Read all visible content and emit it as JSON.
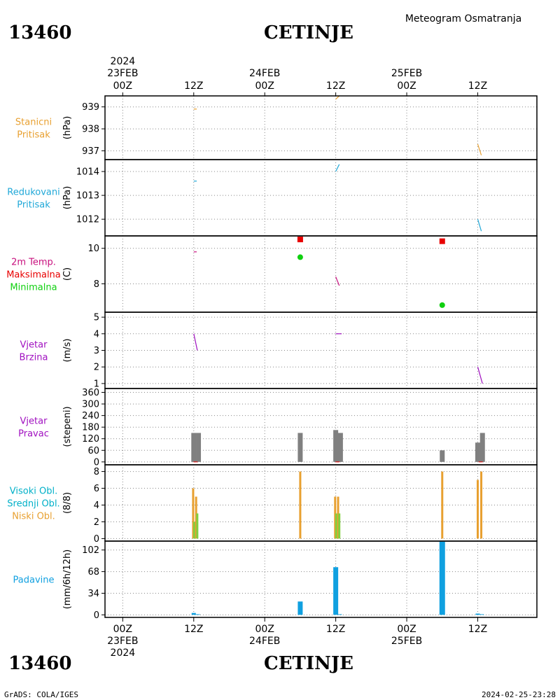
{
  "header": {
    "station_id": "13460",
    "station_name": "CETINJE",
    "product": "Meteogram Osmatranja"
  },
  "footer": {
    "credit": "GrADS: COLA/IGES",
    "timestamp": "2024-02-25-23:28"
  },
  "time_axis": {
    "year": "2024",
    "ticks": [
      {
        "h": 0,
        "time": "00Z",
        "date": "23FEB"
      },
      {
        "h": 12,
        "time": "12Z",
        "date": ""
      },
      {
        "h": 24,
        "time": "00Z",
        "date": "24FEB"
      },
      {
        "h": 36,
        "time": "12Z",
        "date": ""
      },
      {
        "h": 48,
        "time": "00Z",
        "date": "25FEB"
      },
      {
        "h": 60,
        "time": "12Z",
        "date": ""
      }
    ]
  },
  "colors": {
    "orange": "#e8a030",
    "blue": "#20a8d8",
    "magenta": "#c8107e",
    "red": "#e80000",
    "green": "#10d010",
    "purple": "#a010c0",
    "gray": "#808080",
    "cyan": "#00b0c8",
    "lightgreen": "#80d040",
    "precip": "#10a0e0"
  },
  "chart_data": [
    {
      "id": "station_pressure",
      "type": "line",
      "labels": [
        {
          "text": "Stanicni",
          "color": "#e8a030"
        },
        {
          "text": "Pritisak",
          "color": "#e8a030"
        }
      ],
      "unit": "(hPa)",
      "ylim": [
        936.6,
        939.5
      ],
      "yticks": [
        937,
        938,
        939
      ],
      "segments": [
        {
          "color": "#e8a030",
          "points": [
            [
              12,
              938.9
            ],
            [
              12.5,
              938.9
            ]
          ]
        },
        {
          "color": "#e8a030",
          "points": [
            [
              36,
              939.35
            ],
            [
              36.6,
              939.5
            ]
          ]
        },
        {
          "color": "#e8a030",
          "points": [
            [
              60,
              937.3
            ],
            [
              60.6,
              936.8
            ]
          ]
        }
      ]
    },
    {
      "id": "reduced_pressure",
      "type": "line",
      "labels": [
        {
          "text": "Redukovani",
          "color": "#20a8d8"
        },
        {
          "text": "Pritisak",
          "color": "#20a8d8"
        }
      ],
      "unit": "(hPa)",
      "ylim": [
        1011.3,
        1014.5
      ],
      "yticks": [
        1012,
        1013,
        1014
      ],
      "segments": [
        {
          "color": "#20a8d8",
          "points": [
            [
              12,
              1013.6
            ],
            [
              12.5,
              1013.6
            ]
          ]
        },
        {
          "color": "#20a8d8",
          "points": [
            [
              36,
              1014
            ],
            [
              36.6,
              1014.3
            ]
          ]
        },
        {
          "color": "#20a8d8",
          "points": [
            [
              60,
              1012
            ],
            [
              60.6,
              1011.5
            ]
          ]
        }
      ]
    },
    {
      "id": "temperature",
      "type": "line",
      "labels": [
        {
          "text": "2m Temp.",
          "color": "#c8107e"
        },
        {
          "text": "Maksimalna",
          "color": "#e80000"
        },
        {
          "text": "Minimalna",
          "color": "#10d010"
        }
      ],
      "unit": "(C)",
      "ylim": [
        6.4,
        10.7
      ],
      "yticks": [
        8,
        10
      ],
      "segments": [
        {
          "color": "#c8107e",
          "points": [
            [
              12,
              9.8
            ],
            [
              12.5,
              9.8
            ]
          ]
        },
        {
          "color": "#c8107e",
          "points": [
            [
              36,
              8.4
            ],
            [
              36.6,
              7.9
            ]
          ]
        }
      ],
      "max_points": [
        [
          30,
          10.5
        ],
        [
          54,
          10.4
        ]
      ],
      "min_points": [
        [
          30,
          9.5
        ],
        [
          54,
          6.8
        ]
      ]
    },
    {
      "id": "wind_speed",
      "type": "line",
      "labels": [
        {
          "text": "Vjetar",
          "color": "#a010c0"
        },
        {
          "text": "Brzina",
          "color": "#a010c0"
        }
      ],
      "unit": "(m/s)",
      "ylim": [
        0.7,
        5.3
      ],
      "yticks": [
        1,
        2,
        3,
        4,
        5
      ],
      "segments": [
        {
          "color": "#a010c0",
          "points": [
            [
              12,
              4
            ],
            [
              12.6,
              3
            ]
          ]
        },
        {
          "color": "#a010c0",
          "points": [
            [
              36,
              4
            ],
            [
              37,
              4
            ]
          ]
        },
        {
          "color": "#a010c0",
          "points": [
            [
              60,
              2
            ],
            [
              60.8,
              1
            ]
          ]
        }
      ]
    },
    {
      "id": "wind_direction",
      "type": "bar",
      "labels": [
        {
          "text": "Vjetar",
          "color": "#a010c0"
        },
        {
          "text": "Pravac",
          "color": "#a010c0"
        }
      ],
      "unit": "(stepeni)",
      "ylim": [
        -15,
        380
      ],
      "yticks": [
        0,
        60,
        120,
        180,
        240,
        300,
        360
      ],
      "bars": [
        {
          "h": 12,
          "value": 150,
          "color": "#808080"
        },
        {
          "h": 12.8,
          "value": 150,
          "color": "#808080"
        },
        {
          "h": 30,
          "value": 150,
          "color": "#808080"
        },
        {
          "h": 36,
          "value": 165,
          "color": "#808080"
        },
        {
          "h": 36.8,
          "value": 150,
          "color": "#808080"
        },
        {
          "h": 54,
          "value": 60,
          "color": "#808080"
        },
        {
          "h": 60,
          "value": 100,
          "color": "#808080"
        },
        {
          "h": 60.8,
          "value": 150,
          "color": "#808080"
        }
      ],
      "markers": [
        {
          "h": 12.3,
          "value": 0,
          "color": "#e80000"
        },
        {
          "h": 36.3,
          "value": 0,
          "color": "#e80000"
        },
        {
          "h": 60.5,
          "value": 0,
          "color": "#e80000"
        }
      ]
    },
    {
      "id": "clouds",
      "type": "bar",
      "labels": [
        {
          "text": "Visoki Obl.",
          "color": "#00b0c8"
        },
        {
          "text": "Srednji Obl.",
          "color": "#00b0c8"
        },
        {
          "text": "Niski Obl.",
          "color": "#e8a030"
        }
      ],
      "unit": "(8/8)",
      "ylim": [
        -0.3,
        8.8
      ],
      "yticks": [
        0,
        2,
        4,
        6,
        8
      ],
      "bars": [
        {
          "h": 11.9,
          "value": 6,
          "color": "#e8a030",
          "width": 3
        },
        {
          "h": 12.1,
          "value": 2,
          "color": "#80d040",
          "width": 3
        },
        {
          "h": 12.4,
          "value": 5,
          "color": "#e8a030",
          "width": 3
        },
        {
          "h": 12.6,
          "value": 3,
          "color": "#80d040",
          "width": 3
        },
        {
          "h": 30,
          "value": 8,
          "color": "#e8a030",
          "width": 3
        },
        {
          "h": 35.9,
          "value": 5,
          "color": "#e8a030",
          "width": 3
        },
        {
          "h": 36.1,
          "value": 3,
          "color": "#80d040",
          "width": 3
        },
        {
          "h": 36.4,
          "value": 5,
          "color": "#e8a030",
          "width": 3
        },
        {
          "h": 36.6,
          "value": 3,
          "color": "#80d040",
          "width": 3
        },
        {
          "h": 54,
          "value": 8,
          "color": "#e8a030",
          "width": 3
        },
        {
          "h": 60,
          "value": 7,
          "color": "#e8a030",
          "width": 3
        },
        {
          "h": 60.6,
          "value": 8,
          "color": "#e8a030",
          "width": 3
        }
      ]
    },
    {
      "id": "precipitation",
      "type": "bar",
      "labels": [
        {
          "text": "Padavine",
          "color": "#10a0e0"
        }
      ],
      "unit": "(mm/6h/12h)",
      "ylim": [
        -4,
        116
      ],
      "yticks": [
        0,
        34,
        68,
        102
      ],
      "bars": [
        {
          "h": 12,
          "value": 3,
          "color": "#10a0e0",
          "width": 6
        },
        {
          "h": 12.7,
          "value": 1,
          "color": "#10a0e0",
          "width": 6
        },
        {
          "h": 30,
          "value": 21,
          "color": "#10a0e0",
          "width": 7
        },
        {
          "h": 36,
          "value": 75,
          "color": "#10a0e0",
          "width": 7
        },
        {
          "h": 36.7,
          "value": 1,
          "color": "#10a0e0",
          "width": 6
        },
        {
          "h": 54,
          "value": 115,
          "color": "#10a0e0",
          "width": 8
        },
        {
          "h": 60,
          "value": 2,
          "color": "#10a0e0",
          "width": 6
        },
        {
          "h": 60.7,
          "value": 1,
          "color": "#10a0e0",
          "width": 6
        }
      ]
    }
  ]
}
